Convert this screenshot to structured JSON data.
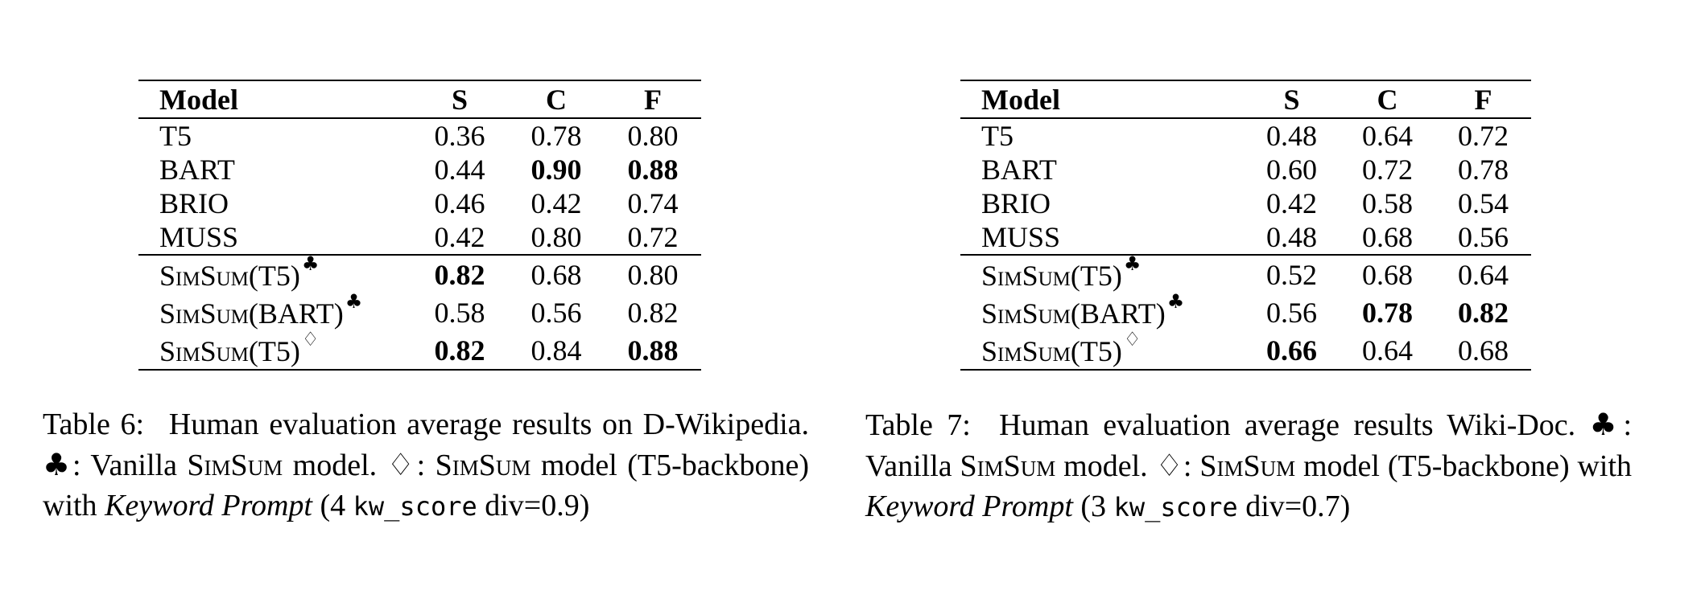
{
  "table6": {
    "headers": [
      "Model",
      "S",
      "C",
      "F"
    ],
    "rows": [
      {
        "model": "T5",
        "s": "0.36",
        "c": "0.78",
        "f": "0.80"
      },
      {
        "model": "BART",
        "s": "0.44",
        "c": "0.90",
        "f": "0.88"
      },
      {
        "model": "BRIO",
        "s": "0.46",
        "c": "0.42",
        "f": "0.74"
      },
      {
        "model": "MUSS",
        "s": "0.42",
        "c": "0.80",
        "f": "0.72"
      },
      {
        "model": "SimSum(T5)",
        "s": "0.82",
        "c": "0.68",
        "f": "0.80"
      },
      {
        "model": "SimSum(BART)",
        "s": "0.58",
        "c": "0.56",
        "f": "0.82"
      },
      {
        "model": "SimSum(T5)",
        "s": "0.82",
        "c": "0.84",
        "f": "0.88"
      }
    ],
    "caption": {
      "label": "Table 6:",
      "text1": "Human evaluation average results on D-Wikipedia.",
      "club": "♣",
      "text2": ": Vanilla",
      "simsum": "SimSum",
      "text3": "model.",
      "diamond": "♢",
      "text4": ":",
      "text5": "model (T5-backbone) with",
      "keyword": "Keyword Prompt",
      "text6": "(4",
      "code": "kw_score",
      "text7": "div=0.9)"
    }
  },
  "table7": {
    "headers": [
      "Model",
      "S",
      "C",
      "F"
    ],
    "rows": [
      {
        "model": "T5",
        "s": "0.48",
        "c": "0.64",
        "f": "0.72"
      },
      {
        "model": "BART",
        "s": "0.60",
        "c": "0.72",
        "f": "0.78"
      },
      {
        "model": "BRIO",
        "s": "0.42",
        "c": "0.58",
        "f": "0.54"
      },
      {
        "model": "MUSS",
        "s": "0.48",
        "c": "0.68",
        "f": "0.56"
      },
      {
        "model": "SimSum(T5)",
        "s": "0.52",
        "c": "0.68",
        "f": "0.64"
      },
      {
        "model": "SimSum(BART)",
        "s": "0.56",
        "c": "0.78",
        "f": "0.82"
      },
      {
        "model": "SimSum(T5)",
        "s": "0.66",
        "c": "0.64",
        "f": "0.68"
      }
    ],
    "caption": {
      "label": "Table 7:",
      "text1": "Human evaluation average results Wiki-Doc.",
      "club": "♣",
      "text2": ": Vanilla",
      "simsum": "SimSum",
      "text3": "model.",
      "diamond": "♢",
      "text4": ":",
      "text5": "model (T5-backbone) with",
      "keyword": "Keyword Prompt",
      "text6": "(3",
      "code": "kw_score",
      "text7": "div=0.7)"
    }
  },
  "markers": {
    "club": "♣",
    "diamond": "♢"
  }
}
